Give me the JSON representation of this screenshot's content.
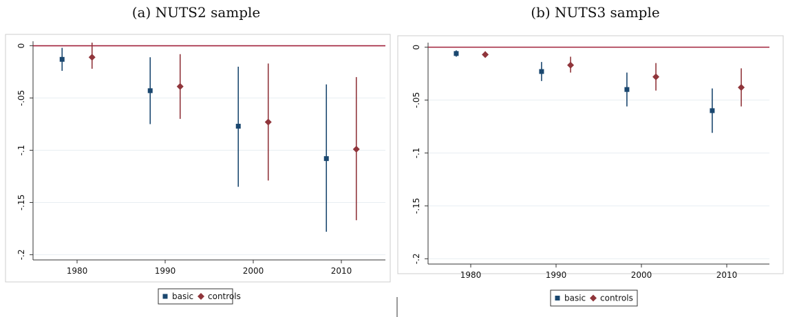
{
  "colors": {
    "basic": "#1a476f",
    "controls": "#90353b",
    "zero_line": "#a0203a",
    "grid": "#e8eef2",
    "frame": "#cccccc"
  },
  "chart_data": [
    {
      "type": "scatter",
      "title": "(a) NUTS2 sample",
      "xlabel": "",
      "ylabel": "",
      "xlim": [
        1975,
        2015
      ],
      "ylim": [
        -0.205,
        0.003
      ],
      "xticks": [
        1980,
        1990,
        2000,
        2010
      ],
      "xtick_labels": [
        "1980",
        "1990",
        "2000",
        "2010"
      ],
      "yticks": [
        0,
        -0.05,
        -0.1,
        -0.15,
        -0.2
      ],
      "ytick_labels": [
        "0",
        "-.05",
        "-.1",
        "-.15",
        "-.2"
      ],
      "grid": true,
      "reference_line": 0,
      "legend_position": "bottom",
      "series": [
        {
          "name": "basic",
          "marker": "square",
          "points": [
            {
              "x": 1978.3,
              "y": -0.013,
              "lo": -0.024,
              "hi": -0.002
            },
            {
              "x": 1988.3,
              "y": -0.043,
              "lo": -0.075,
              "hi": -0.011
            },
            {
              "x": 1998.3,
              "y": -0.077,
              "lo": -0.135,
              "hi": -0.02
            },
            {
              "x": 2008.3,
              "y": -0.108,
              "lo": -0.178,
              "hi": -0.037
            }
          ]
        },
        {
          "name": "controls",
          "marker": "diamond",
          "points": [
            {
              "x": 1981.7,
              "y": -0.011,
              "lo": -0.022,
              "hi": 0.003
            },
            {
              "x": 1991.7,
              "y": -0.039,
              "lo": -0.07,
              "hi": -0.008
            },
            {
              "x": 2001.7,
              "y": -0.073,
              "lo": -0.129,
              "hi": -0.017
            },
            {
              "x": 2011.7,
              "y": -0.099,
              "lo": -0.167,
              "hi": -0.03
            }
          ]
        }
      ]
    },
    {
      "type": "scatter",
      "title": "(b) NUTS3 sample",
      "xlabel": "",
      "ylabel": "",
      "xlim": [
        1975,
        2015
      ],
      "ylim": [
        -0.205,
        0.003
      ],
      "xticks": [
        1980,
        1990,
        2000,
        2010
      ],
      "xtick_labels": [
        "1980",
        "1990",
        "2000",
        "2010"
      ],
      "yticks": [
        0,
        -0.05,
        -0.1,
        -0.15,
        -0.2
      ],
      "ytick_labels": [
        "0",
        "-.05",
        "-.1",
        "-.15",
        "-.2"
      ],
      "grid": true,
      "reference_line": 0,
      "legend_position": "bottom",
      "series": [
        {
          "name": "basic",
          "marker": "square",
          "points": [
            {
              "x": 1978.3,
              "y": -0.006,
              "lo": -0.009,
              "hi": -0.003
            },
            {
              "x": 1988.3,
              "y": -0.023,
              "lo": -0.032,
              "hi": -0.014
            },
            {
              "x": 1998.3,
              "y": -0.04,
              "lo": -0.056,
              "hi": -0.024
            },
            {
              "x": 2008.3,
              "y": -0.06,
              "lo": -0.081,
              "hi": -0.039
            }
          ]
        },
        {
          "name": "controls",
          "marker": "diamond",
          "points": [
            {
              "x": 1981.7,
              "y": -0.007,
              "lo": -0.009,
              "hi": -0.004
            },
            {
              "x": 1991.7,
              "y": -0.017,
              "lo": -0.024,
              "hi": -0.009
            },
            {
              "x": 2001.7,
              "y": -0.028,
              "lo": -0.041,
              "hi": -0.015
            },
            {
              "x": 2011.7,
              "y": -0.038,
              "lo": -0.056,
              "hi": -0.02
            }
          ]
        }
      ]
    }
  ]
}
